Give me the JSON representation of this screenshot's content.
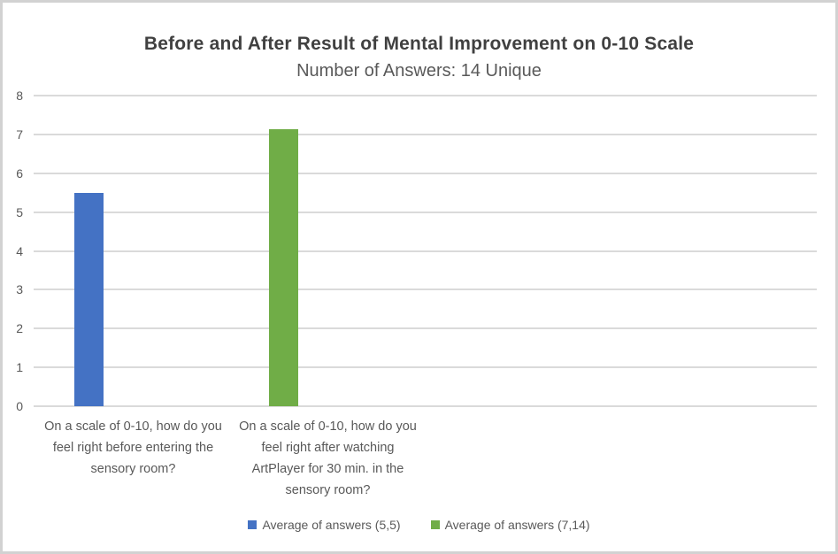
{
  "page": {
    "background": "#FFFFFF",
    "border_color": "#D2D2D2"
  },
  "colors": {
    "gridline": "#DADADA",
    "axis_text": "#595959",
    "title_text": "#404040",
    "subtitle_text": "#595959",
    "category_text": "#595959",
    "legend_text": "#595959",
    "series_blue": "#4472C4",
    "series_green": "#70AD47"
  },
  "chart_data": {
    "type": "bar",
    "title": "Before and After Result of Mental Improvement on 0-10 Scale",
    "subtitle": "Number of Answers: 14 Unique",
    "categories": [
      "On a scale of 0-10, how do you feel right before entering the sensory room?",
      "On a scale of 0-10, how do you feel right after watching ArtPlayer for 30 min. in the sensory room?"
    ],
    "series": [
      {
        "name": "Average of answers (5,5)",
        "color": "#4472C4",
        "values": [
          5.5,
          null
        ]
      },
      {
        "name": "Average of answers (7,14)",
        "color": "#70AD47",
        "values": [
          null,
          7.14
        ]
      }
    ],
    "ylim": [
      0,
      8
    ],
    "yticks": [
      0,
      1,
      2,
      3,
      4,
      5,
      6,
      7,
      8
    ],
    "xlabel": "",
    "ylabel": "",
    "grid": true,
    "legend_position": "bottom"
  }
}
